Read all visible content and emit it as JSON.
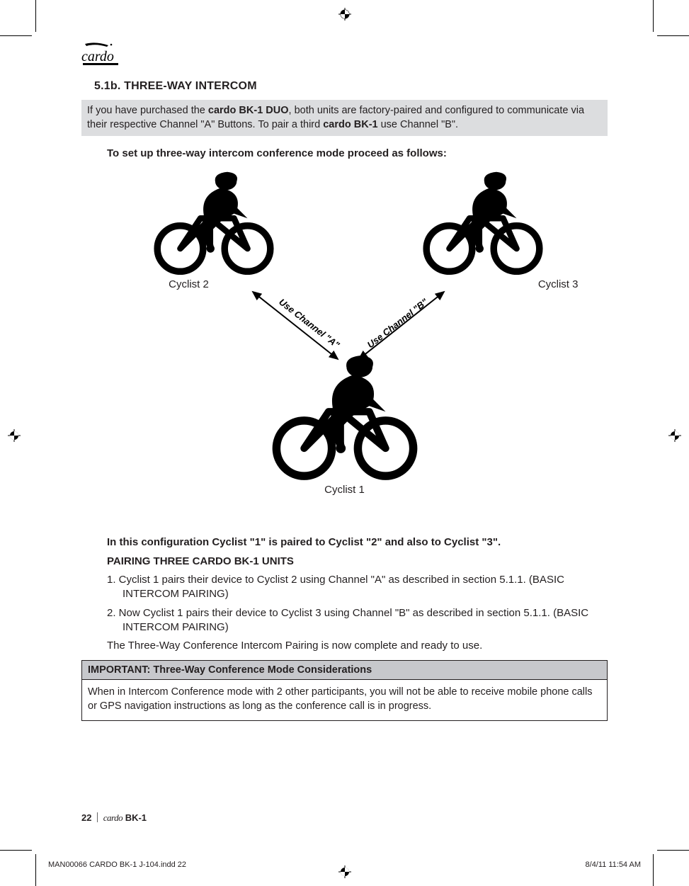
{
  "section_heading": "5.1b. THREE-WAY INTERCOM",
  "note_html": "If you have purchased the <b>cardo BK-1 DUO</b>, both units are factory-paired and configured to communicate via their respective Channel \"A\" Buttons. To pair a third <b>cardo BK-1</b> use Channel \"B\".",
  "intro": "To set up three-way intercom conference mode proceed as follows:",
  "diagram": {
    "cyclist1_label": "Cyclist 1",
    "cyclist2_label": "Cyclist 2",
    "cyclist3_label": "Cyclist 3",
    "arrow_a_label": "Use Channel \"A\"",
    "arrow_b_label": "Use Channel \"B\"",
    "icon_color": "#000000"
  },
  "config_line": "In this configuration Cyclist \"1\" is paired to Cyclist \"2\" and also to Cyclist \"3\".",
  "subheading": "PAIRING THREE CARDO BK-1 UNITS",
  "step1": "1. Cyclist 1 pairs their device to Cyclist 2 using Channel \"A\" as described in section 5.1.1. (BASIC INTERCOM PAIRING)",
  "step2": "2. Now Cyclist 1 pairs their device to Cyclist 3 using Channel \"B\" as described in section 5.1.1. (BASIC INTERCOM PAIRING)",
  "complete": "The Three-Way Conference Intercom Pairing is now complete and ready to use.",
  "important": {
    "title": "IMPORTANT: Three-Way Conference Mode Considerations",
    "body": "When in Intercom Conference mode with 2 other participants, you will not be able to receive mobile phone calls or GPS navigation instructions as long as the conference call is in progress."
  },
  "footer": {
    "page_number": "22",
    "brand": "cardo",
    "model": "BK-1"
  },
  "slug": {
    "file": "MAN00066 CARDO BK-1 J-104.indd   22",
    "date": "8/4/11   11:54 AM"
  },
  "logo_text": "cardo"
}
